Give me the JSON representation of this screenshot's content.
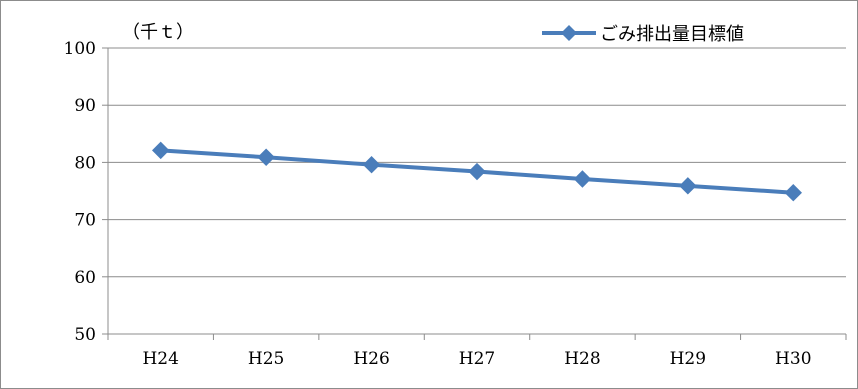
{
  "chart_data": {
    "type": "line",
    "title": "",
    "xlabel": "",
    "ylabel": "（千ｔ）",
    "categories": [
      "H24",
      "H25",
      "H26",
      "H27",
      "H28",
      "H29",
      "H30"
    ],
    "series": [
      {
        "name": "ごみ排出量目標値",
        "values": [
          82.1,
          80.9,
          79.6,
          78.4,
          77.1,
          75.9,
          74.7
        ],
        "color": "#4a7dba"
      }
    ],
    "ylim": [
      50,
      100
    ],
    "yticks": [
      50,
      60,
      70,
      80,
      90,
      100
    ],
    "grid": true,
    "legend_position": "top-right",
    "marker": "diamond"
  }
}
